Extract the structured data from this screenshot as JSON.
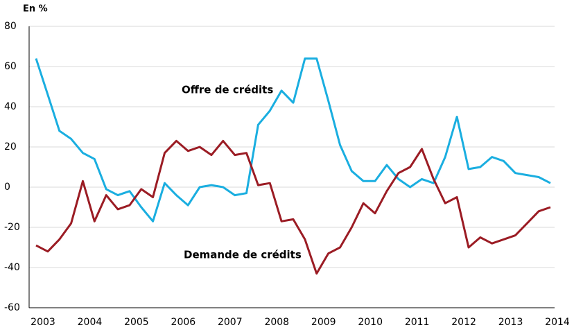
{
  "chart_data": {
    "type": "line",
    "y_unit_label": "En %",
    "categories": [
      "2003",
      null,
      null,
      null,
      "2004",
      null,
      null,
      null,
      "2005",
      null,
      null,
      null,
      "2006",
      null,
      null,
      null,
      "2007",
      null,
      null,
      null,
      "2008",
      null,
      null,
      null,
      "2009",
      null,
      null,
      null,
      "2010",
      null,
      null,
      null,
      "2011",
      null,
      null,
      null,
      "2012",
      null,
      null,
      null,
      "2013",
      null,
      null,
      null,
      "2014"
    ],
    "series": [
      {
        "name": "Offre de crédits",
        "color": "#1aaee0",
        "values": [
          64,
          46,
          28,
          24,
          17,
          14,
          -1,
          -4,
          -2,
          -10,
          -17,
          2,
          -4,
          -9,
          0,
          1,
          0,
          -4,
          -3,
          31,
          38,
          48,
          42,
          64,
          64,
          43,
          21,
          8,
          3,
          3,
          11,
          4,
          0,
          4,
          2,
          15,
          35,
          9,
          10,
          15,
          13,
          7,
          6,
          5,
          2
        ]
      },
      {
        "name": "Demande de crédits",
        "color": "#9b1c24",
        "values": [
          -29,
          -32,
          -26,
          -18,
          3,
          -17,
          -4,
          -11,
          -9,
          -1,
          -5,
          17,
          23,
          18,
          20,
          16,
          23,
          16,
          17,
          1,
          2,
          -17,
          -16,
          -26,
          -43,
          -33,
          -30,
          -20,
          -8,
          -13,
          -2,
          7,
          10,
          19,
          4,
          -8,
          -5,
          -30,
          -25,
          -28,
          -26,
          -24,
          -18,
          -12,
          -10
        ]
      }
    ],
    "ylim": [
      -60,
      80
    ],
    "yticks": [
      -60,
      -40,
      -20,
      0,
      20,
      40,
      60,
      80
    ],
    "grid": true
  }
}
